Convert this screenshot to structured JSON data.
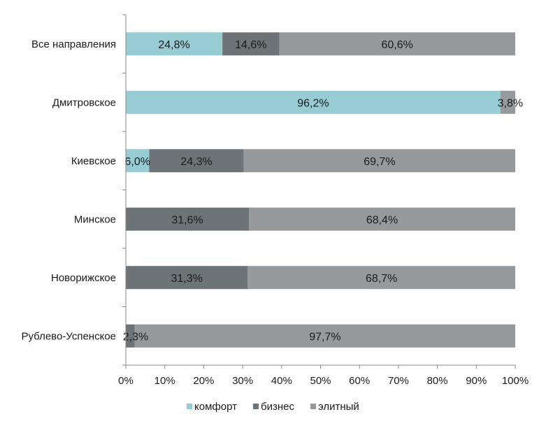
{
  "chart_data": {
    "type": "bar",
    "orientation": "horizontal",
    "stacked": "percent",
    "categories": [
      "Все направления",
      "Дмитровское",
      "Киевское",
      "Минское",
      "Новорижское",
      "Рублево-Успенское"
    ],
    "series": [
      {
        "name": "комфорт",
        "color": "#97ccd4",
        "values": [
          24.8,
          96.2,
          6.0,
          0,
          0,
          0
        ],
        "labels": [
          "24,8%",
          "96,2%",
          "6,0%",
          "",
          "",
          ""
        ]
      },
      {
        "name": "бизнес",
        "color": "#6c7478",
        "values": [
          14.6,
          0,
          24.3,
          31.6,
          31.3,
          2.3
        ],
        "labels": [
          "14,6%",
          "",
          "24,3%",
          "31,6%",
          "31,3%",
          "2,3%"
        ]
      },
      {
        "name": "элитный",
        "color": "#969a9d",
        "values": [
          60.6,
          3.8,
          69.7,
          68.4,
          68.7,
          97.7
        ],
        "labels": [
          "60,6%",
          "3,8%",
          "69,7%",
          "68,4%",
          "68,7%",
          "97,7%"
        ]
      }
    ],
    "xlim": [
      0,
      100
    ],
    "x_ticks": [
      "0%",
      "10%",
      "20%",
      "30%",
      "40%",
      "50%",
      "60%",
      "70%",
      "80%",
      "90%",
      "100%"
    ],
    "grid": false,
    "legend": "bottom"
  }
}
